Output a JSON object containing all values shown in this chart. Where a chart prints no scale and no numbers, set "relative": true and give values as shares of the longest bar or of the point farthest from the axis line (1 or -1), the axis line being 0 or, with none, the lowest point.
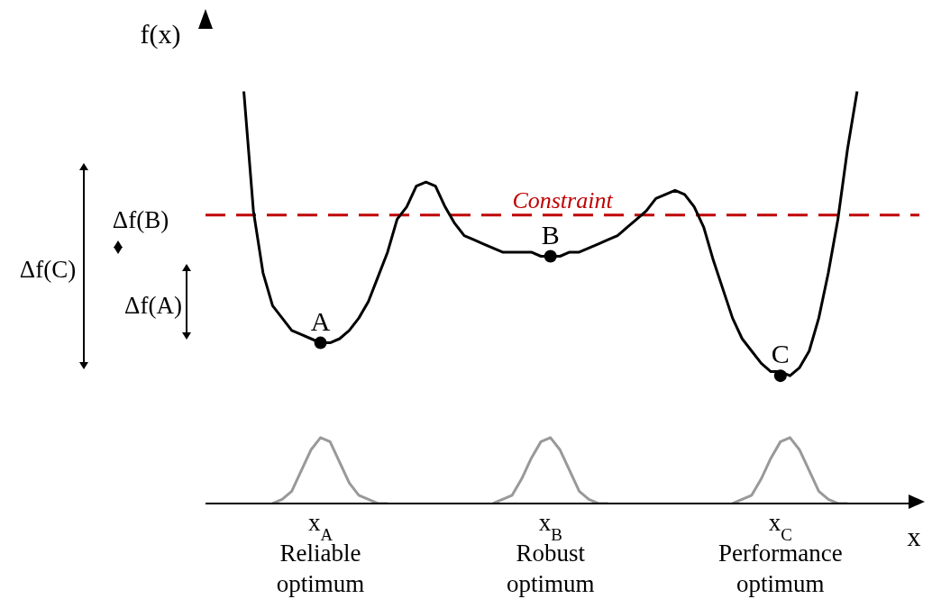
{
  "chart_data": {
    "type": "line",
    "relative": true,
    "xlabel": "x",
    "ylabel": "f(x)",
    "categories": [
      null,
      null,
      null,
      null,
      null,
      null,
      null,
      null,
      "x$_{A}$\nReliable\noptimum",
      null,
      null,
      null,
      null,
      null,
      null,
      null,
      null,
      null,
      null,
      null,
      null,
      null,
      null,
      null,
      null,
      null,
      null,
      null,
      null,
      null,
      null,
      null,
      "x$_{B}$\nRobust\noptimum",
      null,
      null,
      null,
      null,
      null,
      null,
      null,
      null,
      null,
      null,
      null,
      null,
      null,
      null,
      null,
      null,
      null,
      null,
      null,
      null,
      null,
      null,
      null,
      "x$_{C}$\nPerformance\noptimum",
      null,
      null,
      null,
      null,
      null,
      null,
      null,
      null
    ],
    "series": [
      {
        "color": "#000000",
        "marker": "none",
        "values": [
          1.0,
          0.71,
          0.56,
          0.48,
          0.45,
          0.42,
          0.41,
          0.4,
          0.39,
          0.39,
          0.4,
          0.42,
          0.45,
          0.49,
          0.55,
          0.61,
          0.69,
          0.72,
          0.77,
          0.78,
          0.77,
          0.72,
          0.68,
          0.65,
          0.64,
          0.63,
          0.62,
          0.61,
          0.61,
          0.61,
          0.61,
          0.6,
          0.6,
          0.6,
          0.61,
          0.61,
          0.62,
          0.63,
          0.64,
          0.65,
          0.67,
          0.69,
          0.71,
          0.74,
          0.75,
          0.76,
          0.75,
          0.72,
          0.67,
          0.59,
          0.52,
          0.45,
          0.4,
          0.37,
          0.34,
          0.32,
          0.32,
          0.31,
          0.33,
          0.37,
          0.45,
          0.56,
          0.69,
          0.86,
          1.0
        ]
      },
      {
        "color": "#999999",
        "marker": "none",
        "values": [
          null,
          null,
          null,
          0,
          0.01,
          0.03,
          0.08,
          0.13,
          0.16,
          0.15,
          0.1,
          0.05,
          0.02,
          0.01,
          0,
          0,
          null,
          null,
          null,
          null,
          null,
          null,
          null,
          null,
          null,
          null,
          0,
          0.01,
          0.02,
          0.06,
          0.11,
          0.15,
          0.16,
          0.13,
          0.08,
          0.03,
          0.01,
          0,
          0,
          null,
          null,
          null,
          null,
          null,
          null,
          null,
          null,
          null,
          null,
          null,
          null,
          0,
          0.01,
          0.02,
          0.06,
          0.11,
          0.15,
          0.16,
          0.13,
          0.08,
          0.03,
          0.01,
          0,
          0,
          null
        ]
      },
      {
        "type": "scatter",
        "marker": "circle",
        "color": "#000000",
        "x": [
          "x$_{A}$\nReliable\noptimum",
          "x$_{B}$\nRobust\noptimum",
          "x$_{C}$\nPerformance\noptimum"
        ],
        "values": [
          0.39,
          0.6,
          0.31
        ]
      }
    ],
    "ref_lines": [
      {
        "axis": "y",
        "value": 0.7,
        "label": "Constraint",
        "color": "#c00000",
        "line_style": "dashed"
      }
    ],
    "annotations": [
      {
        "text": "A",
        "x": "x$_{A}$\nReliable\noptimum",
        "y": 0.39
      },
      {
        "text": "B",
        "x": "x$_{B}$\nRobust\noptimum",
        "y": 0.6
      },
      {
        "text": "C",
        "x": "x$_{C}$\nPerformance\noptimum",
        "y": 0.31
      },
      "Δf(A)",
      "Δf(B)",
      "Δf(C)"
    ]
  }
}
